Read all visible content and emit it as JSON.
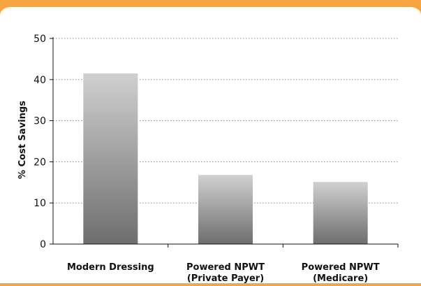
{
  "chart_data": {
    "type": "bar",
    "categories": [
      [
        "Modern Dressing"
      ],
      [
        "Powered NPWT",
        "(Private Payer)"
      ],
      [
        "Powered NPWT",
        "(Medicare)"
      ]
    ],
    "values": [
      41.5,
      16.8,
      15.1
    ],
    "ylabel": "% Cost Savings",
    "ylim": [
      0,
      50
    ],
    "yticks": [
      0,
      10,
      20,
      30,
      40,
      50
    ],
    "grid": "horizontal-dotted",
    "colors": {
      "frame": "#f7a541",
      "background": "#ffffff",
      "bar_top": "#d0d0d0",
      "bar_bottom": "#6e6e6e",
      "text": "#111111",
      "grid": "#8a8a8a"
    }
  }
}
